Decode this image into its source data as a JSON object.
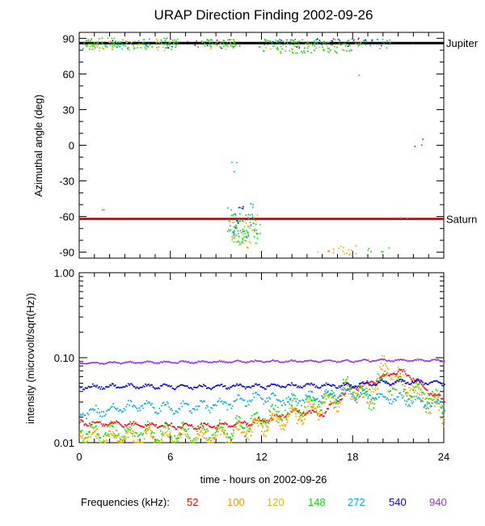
{
  "chart_data": [
    {
      "id": "direction",
      "type": "scatter",
      "title": "URAP Direction Finding  2002-09-26",
      "xlabel": "",
      "ylabel": "Azimuthal angle (deg)",
      "xlim": [
        0,
        24
      ],
      "ylim": [
        -95,
        95
      ],
      "xticks": [
        0,
        6,
        12,
        18,
        24
      ],
      "yticks": [
        90,
        60,
        30,
        0,
        -30,
        -60,
        -90
      ],
      "ytick_labels": [
        "90",
        "60",
        "30",
        "0",
        "-30",
        "-60",
        "-90"
      ],
      "reference_lines": [
        {
          "name": "Jupiter",
          "y": 86,
          "color": "#000000"
        },
        {
          "name": "Saturn",
          "y": -62,
          "color": "#ff0000"
        }
      ],
      "series": [
        {
          "name": "52",
          "color": "#ff0000",
          "clusters": [
            {
              "x0": 16.5,
              "x1": 18.5,
              "y": 88,
              "spread": 3,
              "n": 14
            },
            {
              "x0": 21.5,
              "x1": 22.6,
              "y": 2,
              "spread": 4,
              "n": 3
            }
          ]
        },
        {
          "name": "100",
          "color": "#ff9900",
          "clusters": [
            {
              "x0": 0.3,
              "x1": 5.5,
              "y": 85,
              "spread": 5,
              "n": 20
            },
            {
              "x0": 15.5,
              "x1": 18.5,
              "y": -88,
              "spread": 4,
              "n": 10
            },
            {
              "x0": 10.0,
              "x1": 11.5,
              "y": -75,
              "spread": 12,
              "n": 10
            }
          ]
        },
        {
          "name": "120",
          "color": "#e6b800",
          "clusters": [
            {
              "x0": 0.3,
              "x1": 6.5,
              "y": 85,
              "spread": 5,
              "n": 30
            },
            {
              "x0": 8.0,
              "x1": 10.2,
              "y": 85,
              "spread": 4,
              "n": 15
            },
            {
              "x0": 12.0,
              "x1": 18.0,
              "y": 84,
              "spread": 5,
              "n": 30
            },
            {
              "x0": 10.0,
              "x1": 11.8,
              "y": -70,
              "spread": 12,
              "n": 25
            },
            {
              "x0": 15.5,
              "x1": 18.0,
              "y": -88,
              "spread": 4,
              "n": 8
            }
          ]
        },
        {
          "name": "148",
          "color": "#00e600",
          "clusters": [
            {
              "x0": 0.2,
              "x1": 6.5,
              "y": 86,
              "spread": 5,
              "n": 90
            },
            {
              "x0": 8.0,
              "x1": 10.3,
              "y": 86,
              "spread": 4,
              "n": 40
            },
            {
              "x0": 11.8,
              "x1": 18.0,
              "y": 84,
              "spread": 6,
              "n": 100
            },
            {
              "x0": 17.8,
              "x1": 20.5,
              "y": 86,
              "spread": 4,
              "n": 15
            },
            {
              "x0": 9.8,
              "x1": 11.9,
              "y": -70,
              "spread": 13,
              "n": 70
            },
            {
              "x0": 1.4,
              "x1": 1.8,
              "y": -52,
              "spread": 2,
              "n": 2
            },
            {
              "x0": 18.0,
              "x1": 18.4,
              "y": 60,
              "spread": 2,
              "n": 1
            },
            {
              "x0": 18.5,
              "x1": 21.0,
              "y": -88,
              "spread": 3,
              "n": 6
            }
          ]
        },
        {
          "name": "272",
          "color": "#00aaff",
          "clusters": [
            {
              "x0": 0.3,
              "x1": 6.0,
              "y": 86,
              "spread": 4,
              "n": 25
            },
            {
              "x0": 12.0,
              "x1": 20.5,
              "y": 86,
              "spread": 4,
              "n": 25
            },
            {
              "x0": 9.7,
              "x1": 11.6,
              "y": -62,
              "spread": 14,
              "n": 30
            },
            {
              "x0": 10.0,
              "x1": 10.5,
              "y": -20,
              "spread": 8,
              "n": 3
            },
            {
              "x0": 20.0,
              "x1": 22.0,
              "y": -62,
              "spread": 2,
              "n": 2
            }
          ]
        },
        {
          "name": "540",
          "color": "#0000ff",
          "clusters": [
            {
              "x0": 0.5,
              "x1": 22.5,
              "y": 86,
              "spread": 4,
              "n": 25
            },
            {
              "x0": 10.0,
              "x1": 10.8,
              "y": -60,
              "spread": 10,
              "n": 6
            }
          ]
        },
        {
          "name": "940",
          "color": "#9933ff",
          "clusters": [
            {
              "x0": 2.0,
              "x1": 22.0,
              "y": 86,
              "spread": 4,
              "n": 12
            }
          ]
        }
      ]
    },
    {
      "id": "intensity",
      "type": "scatter",
      "scale": "log",
      "title": "",
      "xlabel": "time - hours on 2002-09-26",
      "ylabel": "intensity (microvolt/sqrt(Hz))",
      "xlim": [
        0,
        24
      ],
      "ylim": [
        0.01,
        1.0
      ],
      "xticks": [
        0,
        6,
        12,
        18,
        24
      ],
      "xtick_labels": [
        "0",
        "6",
        "12",
        "18",
        "24"
      ],
      "yticks": [
        0.01,
        0.1,
        1.0
      ],
      "ytick_labels": [
        "0.01",
        "0.10",
        "1.00"
      ],
      "series": [
        {
          "name": "52",
          "color": "#ff0000",
          "x": [
            0,
            2,
            4,
            6,
            8,
            10,
            12,
            13,
            14,
            16,
            17,
            18,
            19,
            20,
            21,
            22,
            23,
            24
          ],
          "y": [
            0.0175,
            0.017,
            0.0165,
            0.016,
            0.016,
            0.0165,
            0.0185,
            0.02,
            0.024,
            0.022,
            0.033,
            0.045,
            0.05,
            0.06,
            0.072,
            0.058,
            0.04,
            0.032
          ]
        },
        {
          "name": "100",
          "color": "#ff9900",
          "x": [
            0,
            2,
            4,
            6,
            8,
            10,
            12,
            14,
            16,
            18,
            19,
            20,
            21,
            22,
            23,
            24
          ],
          "y": [
            0.013,
            0.011,
            0.0115,
            0.012,
            0.0115,
            0.0125,
            0.016,
            0.02,
            0.025,
            0.04,
            0.03,
            0.07,
            0.05,
            0.038,
            0.028,
            0.02
          ]
        },
        {
          "name": "120",
          "color": "#e6b800",
          "x": [
            0,
            2,
            4,
            6,
            8,
            10,
            12,
            14,
            16,
            18,
            19,
            20,
            21,
            22,
            23,
            24
          ],
          "y": [
            0.013,
            0.0125,
            0.012,
            0.012,
            0.012,
            0.013,
            0.017,
            0.022,
            0.03,
            0.045,
            0.04,
            0.085,
            0.06,
            0.045,
            0.035,
            0.025
          ]
        },
        {
          "name": "148",
          "color": "#00e600",
          "x": [
            0,
            2,
            4,
            6,
            8,
            10,
            12,
            14,
            16,
            18,
            19,
            20,
            21,
            22,
            23,
            24
          ],
          "y": [
            0.014,
            0.013,
            0.0135,
            0.013,
            0.013,
            0.0145,
            0.02,
            0.026,
            0.032,
            0.05,
            0.03,
            0.055,
            0.045,
            0.04,
            0.035,
            0.028
          ]
        },
        {
          "name": "272",
          "color": "#00aaff",
          "x": [
            0,
            2,
            4,
            6,
            8,
            10,
            12,
            14,
            16,
            18,
            20,
            22,
            24
          ],
          "y": [
            0.0225,
            0.025,
            0.028,
            0.026,
            0.027,
            0.03,
            0.035,
            0.032,
            0.036,
            0.038,
            0.035,
            0.032,
            0.028
          ]
        },
        {
          "name": "540",
          "color": "#0000ff",
          "x": [
            0,
            4,
            8,
            12,
            16,
            18,
            20,
            22,
            24
          ],
          "y": [
            0.046,
            0.047,
            0.046,
            0.047,
            0.048,
            0.048,
            0.052,
            0.053,
            0.05
          ]
        },
        {
          "name": "940",
          "color": "#9933ff",
          "x": [
            0,
            6,
            12,
            18,
            20,
            22,
            24
          ],
          "y": [
            0.088,
            0.09,
            0.092,
            0.093,
            0.095,
            0.095,
            0.094
          ]
        }
      ],
      "annotations": []
    }
  ],
  "legend": {
    "label": "Frequencies (kHz):",
    "items": [
      {
        "text": "52",
        "color": "#ff0000"
      },
      {
        "text": "100",
        "color": "#ff9900"
      },
      {
        "text": "120",
        "color": "#e6b800"
      },
      {
        "text": "148",
        "color": "#00e600"
      },
      {
        "text": "272",
        "color": "#00aaff"
      },
      {
        "text": "540",
        "color": "#0000ff"
      },
      {
        "text": "940",
        "color": "#9933ff"
      }
    ]
  }
}
